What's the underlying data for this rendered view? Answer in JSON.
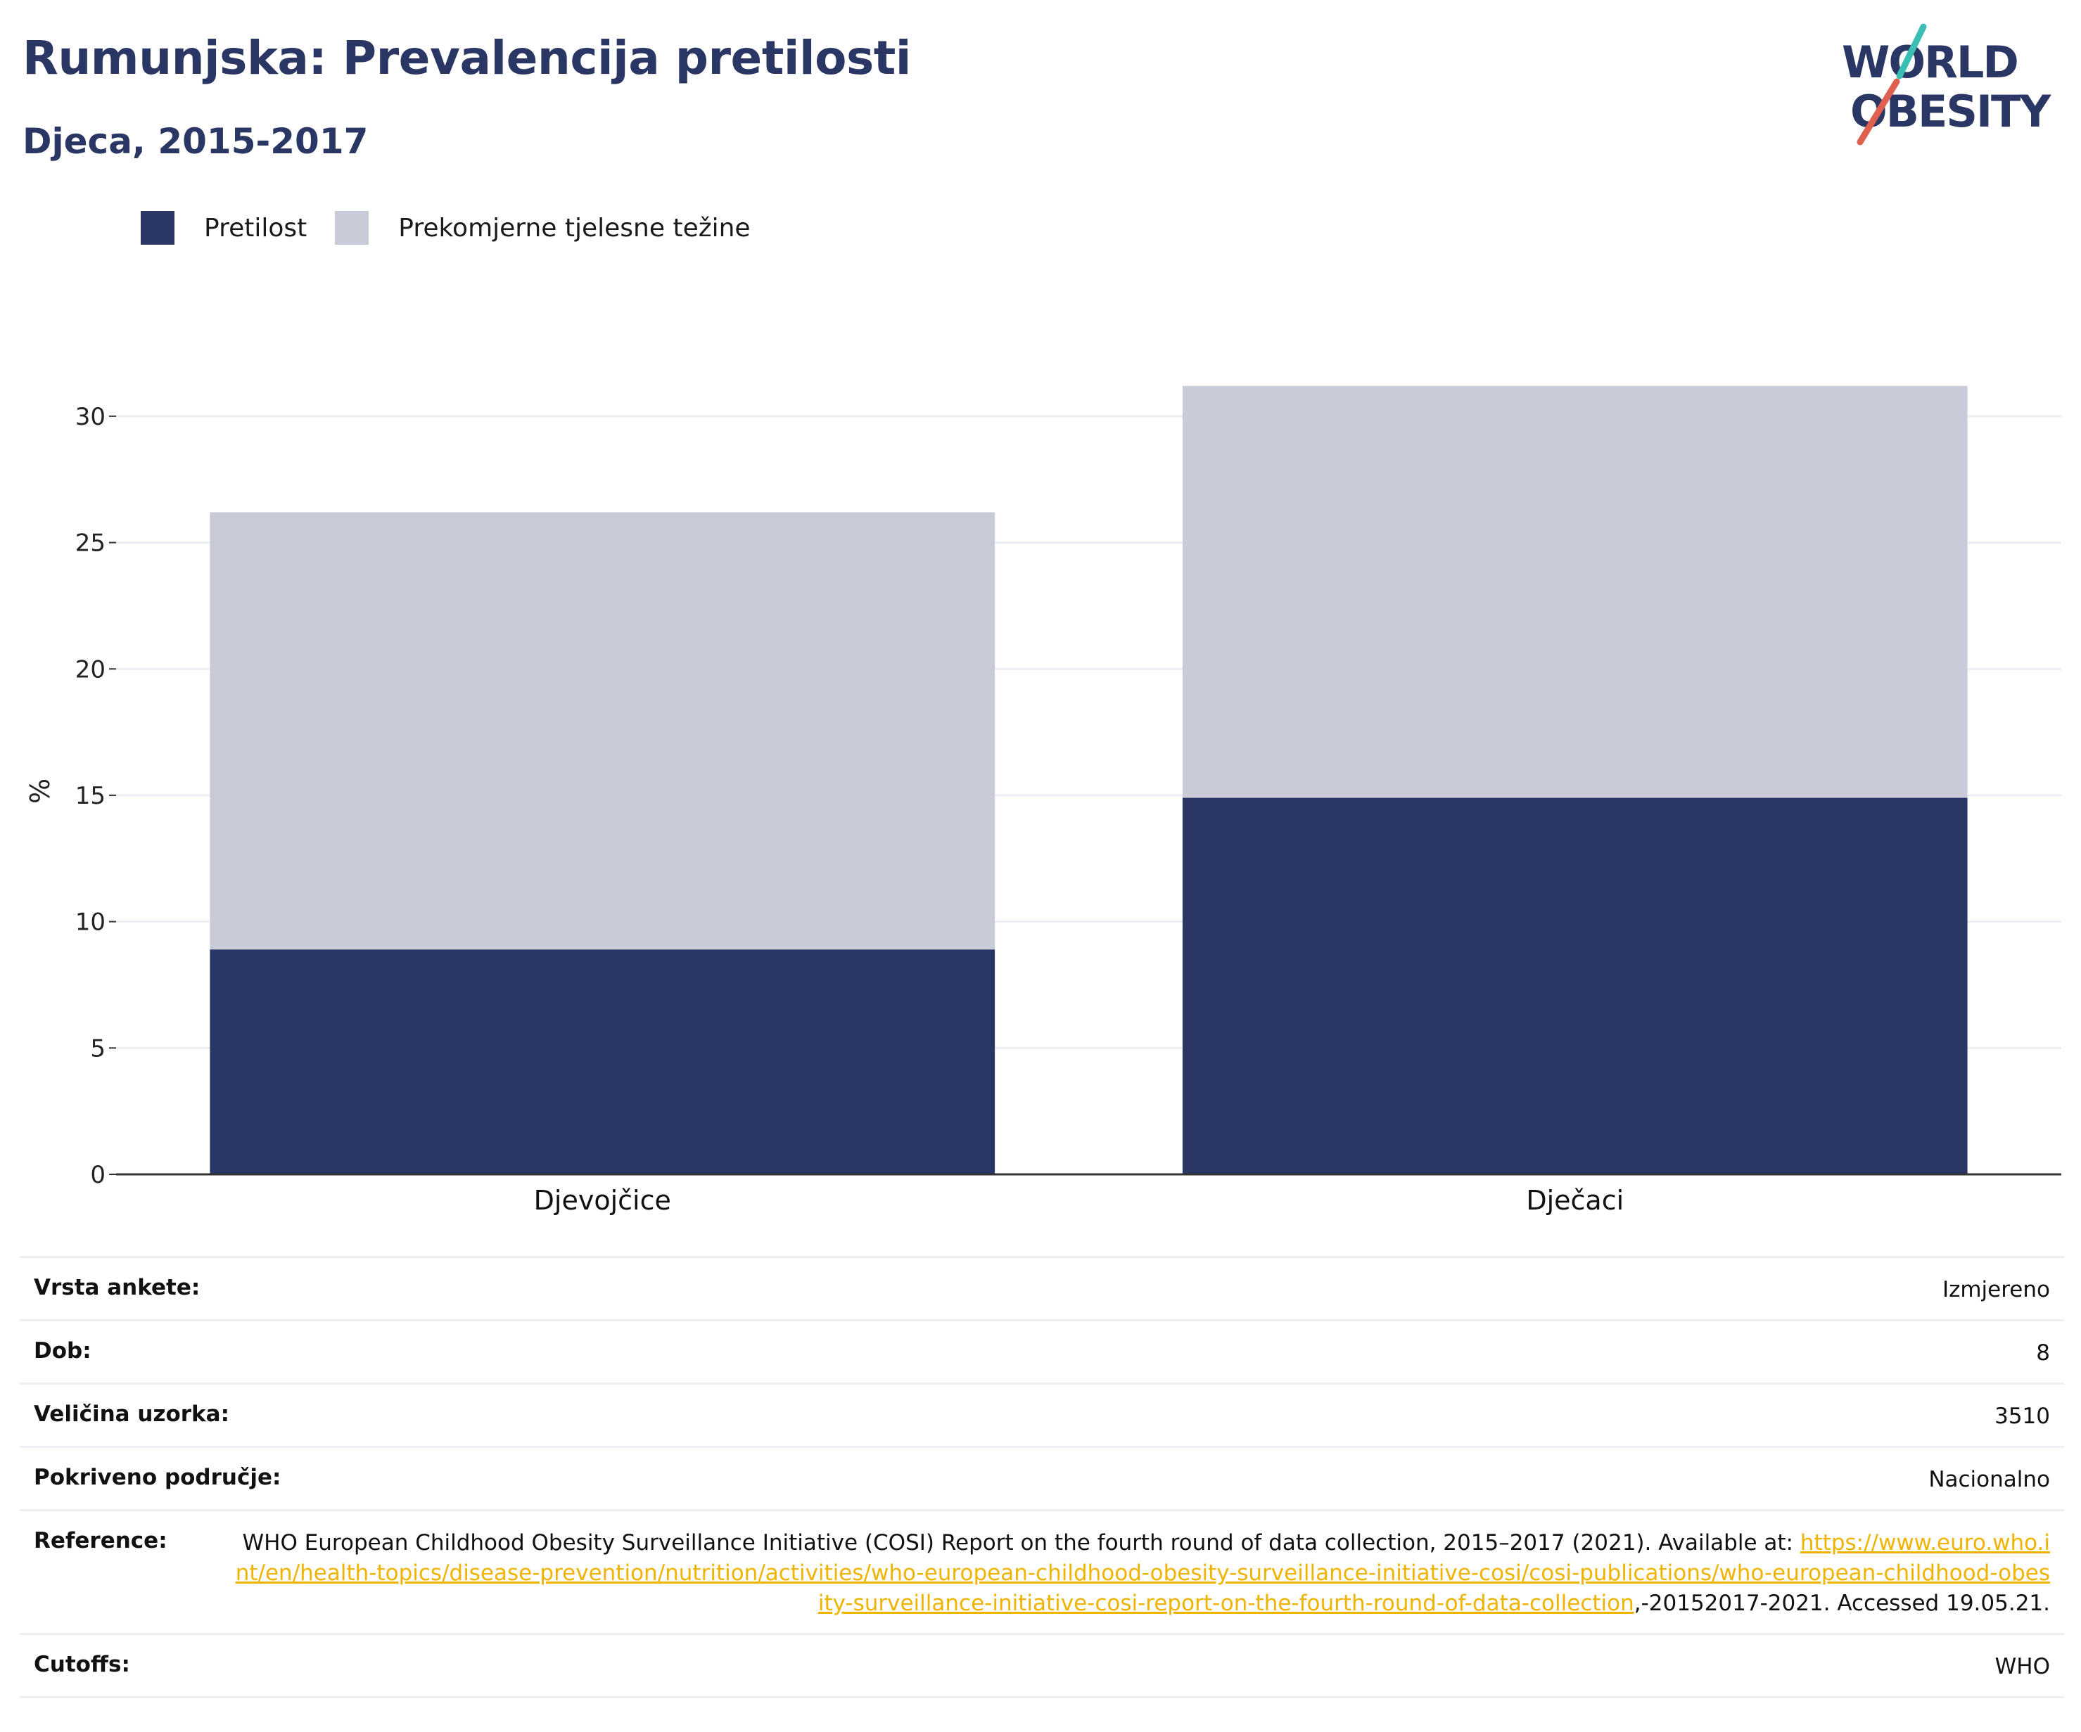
{
  "header": {
    "title": "Rumunjska: Prevalencija pretilosti",
    "subtitle": "Djeca, 2015-2017"
  },
  "logo": {
    "line1": "WORLD",
    "line2": "OBESITY",
    "colors": {
      "text": "#2a3663",
      "slash_top": "#3bbfb5",
      "slash_bottom": "#e0604f"
    }
  },
  "legend": [
    {
      "label": "Pretilost",
      "color": "#2a3663"
    },
    {
      "label": "Prekomjerne tjelesne težine",
      "color": "#c9ccd8"
    }
  ],
  "chart_data": {
    "type": "bar",
    "stacked": true,
    "categories": [
      "Djevojčice",
      "Dječaci"
    ],
    "series": [
      {
        "name": "Pretilost",
        "values": [
          8.9,
          14.9
        ],
        "color": "#2a3663"
      },
      {
        "name": "Prekomjerne tjelesne težine",
        "values": [
          17.3,
          16.3
        ],
        "color": "#c9ccd8"
      }
    ],
    "ylabel": "%",
    "xlabel": "",
    "ylim": [
      0,
      32
    ],
    "yticks": [
      0,
      5,
      10,
      15,
      20,
      25,
      30
    ],
    "grid": true,
    "legend_position": "top-left"
  },
  "info": {
    "survey_type": {
      "label": "Vrsta ankete:",
      "value": "Izmjereno"
    },
    "age": {
      "label": "Dob:",
      "value": "8"
    },
    "sample_size": {
      "label": "Veličina uzorka:",
      "value": "3510"
    },
    "area": {
      "label": "Pokriveno područje:",
      "value": "Nacionalno"
    },
    "reference": {
      "label": "Reference:",
      "text_before": "WHO European Childhood Obesity Surveillance Initiative (COSI) Report on the fourth round of data collection, 2015–2017 (2021). Available at: ",
      "link": "https://www.euro.who.int/en/health-topics/disease-prevention/nutrition/activities/who-european-childhood-obesity-surveillance-initiative-cosi/cosi-publications/who-european-childhood-obesity-surveillance-initiative-cosi-report-on-the-fourth-round-of-data-collection",
      "text_after": ",-20152017-2021. Accessed 19.05.21."
    },
    "cutoffs": {
      "label": "Cutoffs:",
      "value": "WHO"
    }
  }
}
